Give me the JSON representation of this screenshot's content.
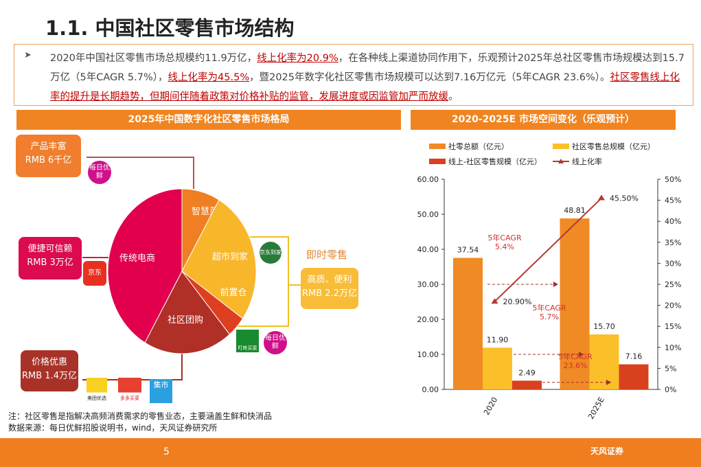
{
  "title": "1.1. 中国社区零售市场结构",
  "summary": {
    "bullet": "➤",
    "p1": "2020年中国社区零售市场总规模约11.9万亿，",
    "r1": "线上化率为20.9%",
    "p2": "，在各种线上渠道协同作用下，乐观预计2025年总社区零售市场规模达到15.7万亿（5年CAGR  5.7%），",
    "r2": "线上化率为45.5%",
    "p3": "，暨2025年数字化社区零售市场规模可以达到7.16万亿元（5年CAGR 23.6%）。",
    "r3": "社区零售线上化率的提升是长期趋势，但期间伴随着政策对价格补贴的监管，发展进度或因监管加严而放缓",
    "p4": "。"
  },
  "left_panel": {
    "header": "2025年中国数字化社区零售市场格局",
    "slices": [
      {
        "label": "智慧菜场",
        "share": 30,
        "color": "#f07e22"
      },
      {
        "label": "超市到家",
        "share": 95,
        "color": "#f8b62a"
      },
      {
        "label": "前置仓",
        "share": 15,
        "color": "#dc4020"
      },
      {
        "label": "社区团购",
        "share": 70,
        "color": "#b03028"
      },
      {
        "label": "传统电商",
        "share": 150,
        "color": "#e2004e"
      }
    ],
    "boxes": {
      "b1": {
        "title": "产品丰富",
        "value": "RMB 6千亿"
      },
      "b2": {
        "title": "便捷可信赖",
        "value": "RMB 3万亿"
      },
      "b3": {
        "title": "价格优惠",
        "value": "RMB 1.4万亿"
      },
      "b4": {
        "title": "高质、便利",
        "value": "RMB 2.2万亿"
      }
    },
    "instant_retail": "即时零售",
    "logos": {
      "missfresh": "每日优鲜",
      "jd": "京东",
      "jddj": "京东到家",
      "dingdong": "叮咚买菜",
      "meituan": "美团优选",
      "duoduo": "多多买菜",
      "jishi": "集市"
    }
  },
  "right_panel": {
    "header": "2020-2025E 市场空间变化（乐观预计）"
  },
  "chart_data": {
    "type": "bar",
    "categories": [
      "2020",
      "2025E"
    ],
    "series": [
      {
        "name": "社零总额（亿元）",
        "values": [
          37.54,
          48.81
        ],
        "color": "#f08a24",
        "labels": [
          "37.54",
          "48.81"
        ]
      },
      {
        "name": "社区零售总规模（亿元）",
        "values": [
          11.9,
          15.7
        ],
        "color": "#fbbf2a",
        "labels": [
          "11.90",
          "15.70"
        ]
      },
      {
        "name": "线上-社区零售规模（亿元）",
        "values": [
          2.49,
          7.16
        ],
        "color": "#d9401e",
        "labels": [
          "2.49",
          "7.16"
        ]
      },
      {
        "name": "线上化率",
        "type": "line",
        "axis": "right",
        "values": [
          20.9,
          45.5
        ],
        "color": "#b03a2e",
        "labels": [
          "20.90%",
          "45.50%"
        ]
      }
    ],
    "ylim": [
      0,
      60
    ],
    "yticks": [
      "0.00",
      "10.00",
      "20.00",
      "30.00",
      "40.00",
      "50.00",
      "60.00"
    ],
    "y2lim": [
      0,
      50
    ],
    "y2ticks": [
      "0%",
      "5%",
      "10%",
      "15%",
      "20%",
      "25%",
      "30%",
      "35%",
      "40%",
      "45%",
      "50%"
    ],
    "annotations": [
      {
        "line1": "5年CAGR",
        "line2": "5.4%"
      },
      {
        "line1": "5年CAGR",
        "line2": "5.7%"
      },
      {
        "line1": "5年CAGR",
        "line2": "23.6%"
      }
    ]
  },
  "note": "注：社区零售是指解决高频消费需求的零售业态，主要涵盖生鲜和快消品",
  "source": "数据来源：每日优鲜招股说明书，wind，天风证券研究所",
  "footer": {
    "page": "5",
    "brand": "天风证券"
  }
}
